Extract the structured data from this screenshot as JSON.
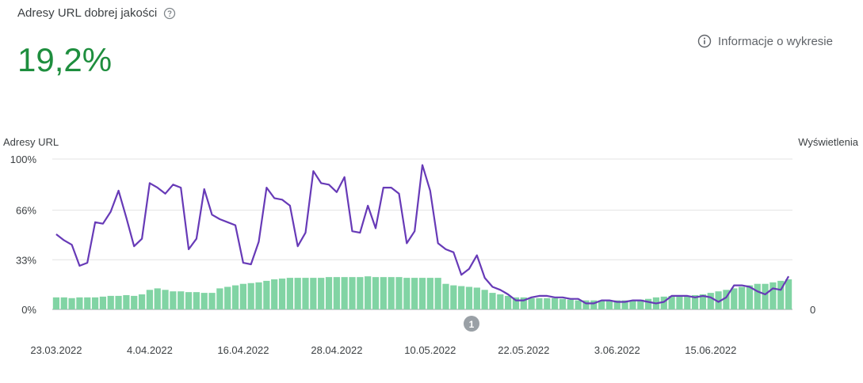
{
  "header": {
    "title": "Adresy URL dobrej jakości",
    "help_icon": "help-circle-icon",
    "big_value": "19,2%",
    "big_value_color": "#1e8e3e",
    "info_label": "Informacje o wykresie",
    "info_icon": "info-circle-icon"
  },
  "chart_data": {
    "type": "bar",
    "left_axis_title": "Adresy URL",
    "right_axis_title": "Wyświetlenia",
    "y_ticks": [
      "100%",
      "66%",
      "33%",
      "0%"
    ],
    "y_tick_values": [
      100,
      66,
      33,
      0
    ],
    "right_ticks": [
      "0"
    ],
    "ylim": [
      0,
      100
    ],
    "grid": true,
    "x_tick_labels": [
      "23.03.2022",
      "4.04.2022",
      "16.04.2022",
      "28.04.2022",
      "10.05.2022",
      "22.05.2022",
      "3.06.2022",
      "15.06.2022"
    ],
    "annotation": "1",
    "series": [
      {
        "kind": "bar",
        "color": "#81d4a4",
        "values": [
          8,
          8,
          7.5,
          8,
          8,
          8,
          8.5,
          9,
          9,
          9.5,
          9,
          10,
          13,
          14,
          13,
          12,
          12,
          11.5,
          11.5,
          11,
          11,
          14,
          15,
          16,
          17,
          17.5,
          18,
          19,
          20,
          20.5,
          21,
          21,
          21,
          21,
          21,
          21.5,
          21.5,
          21.5,
          21.5,
          21.5,
          22,
          21.5,
          21.5,
          21.5,
          21.5,
          21,
          21,
          21,
          21,
          21,
          17,
          16,
          15.5,
          15,
          14.5,
          13,
          11,
          10,
          9,
          8,
          8,
          7.5,
          7.5,
          7.5,
          7.5,
          7,
          6.5,
          6,
          6,
          6,
          6,
          6,
          6,
          6,
          6,
          6.5,
          7,
          8,
          8.5,
          9,
          9,
          9,
          9.5,
          10,
          11,
          12,
          13,
          14,
          15,
          16,
          17,
          17,
          18,
          19,
          20
        ]
      },
      {
        "kind": "line",
        "color": "#673ab7",
        "values": [
          50,
          46,
          43,
          29,
          31,
          58,
          57,
          65,
          79,
          61,
          42,
          47,
          84,
          81,
          77,
          83,
          81,
          40,
          47,
          80,
          63,
          60,
          58,
          56,
          31,
          30,
          45,
          81,
          74,
          73,
          69,
          42,
          51,
          92,
          84,
          83,
          78,
          88,
          52,
          51,
          69,
          54,
          81,
          81,
          77,
          44,
          52,
          96,
          79,
          44,
          40,
          38,
          23,
          27,
          36,
          21,
          15,
          13,
          10,
          6,
          6,
          8,
          9,
          9,
          8,
          8,
          7,
          7,
          4,
          4,
          6,
          6,
          5,
          5,
          6,
          6,
          5,
          4,
          5,
          9,
          9,
          9,
          8,
          9,
          8,
          5,
          8,
          16,
          16,
          15,
          12,
          10,
          14,
          13,
          22
        ]
      }
    ]
  }
}
